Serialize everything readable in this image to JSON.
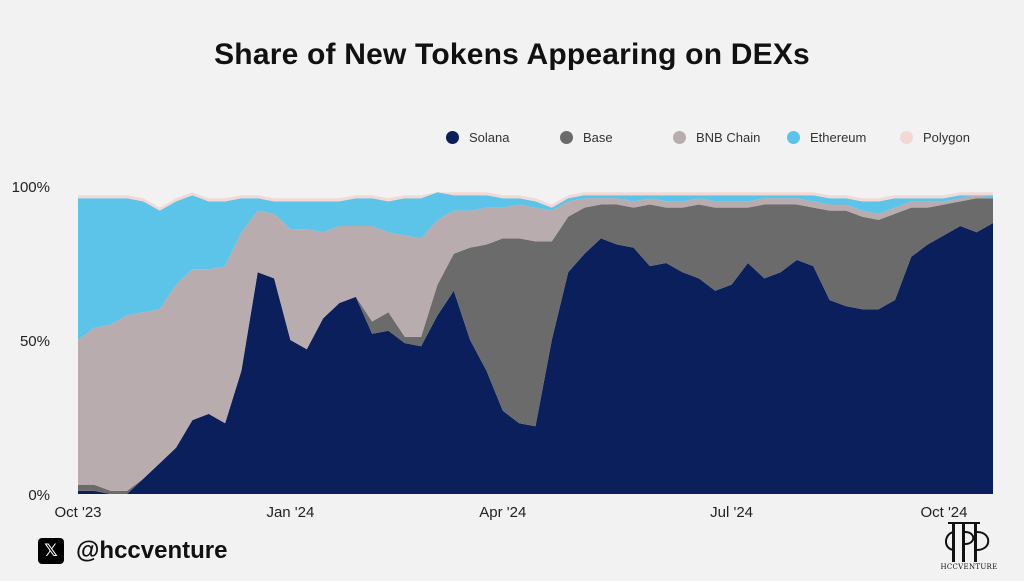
{
  "title": "Share of New Tokens Appearing on DEXs",
  "footer": {
    "handle": "@hccventure",
    "logo_text": "HCCVENTURE",
    "icon": "x-logo-icon"
  },
  "chart_data": {
    "type": "area",
    "stacked": true,
    "title": "Share of New Tokens Appearing on DEXs",
    "ylim": [
      0,
      100
    ],
    "y_ticks": [
      "0%",
      "50%",
      "100%"
    ],
    "x_ticks": [
      "Oct '23",
      "Jan '24",
      "Apr '24",
      "Jul '24",
      "Oct '24"
    ],
    "grid": false,
    "legend_position": "top-right",
    "x": [
      "2023-10-01",
      "2023-10-08",
      "2023-10-15",
      "2023-10-22",
      "2023-10-29",
      "2023-11-05",
      "2023-11-12",
      "2023-11-19",
      "2023-11-26",
      "2023-12-03",
      "2023-12-10",
      "2023-12-17",
      "2023-12-24",
      "2023-12-31",
      "2024-01-07",
      "2024-01-14",
      "2024-01-21",
      "2024-01-28",
      "2024-02-04",
      "2024-02-11",
      "2024-02-18",
      "2024-02-25",
      "2024-03-03",
      "2024-03-10",
      "2024-03-17",
      "2024-03-24",
      "2024-03-31",
      "2024-04-07",
      "2024-04-14",
      "2024-04-21",
      "2024-04-28",
      "2024-05-05",
      "2024-05-12",
      "2024-05-19",
      "2024-05-26",
      "2024-06-02",
      "2024-06-09",
      "2024-06-16",
      "2024-06-23",
      "2024-06-30",
      "2024-07-07",
      "2024-07-14",
      "2024-07-21",
      "2024-07-28",
      "2024-08-04",
      "2024-08-11",
      "2024-08-18",
      "2024-08-25",
      "2024-09-01",
      "2024-09-08",
      "2024-09-15",
      "2024-09-22",
      "2024-09-29",
      "2024-10-06",
      "2024-10-13",
      "2024-10-20",
      "2024-10-27"
    ],
    "series": [
      {
        "name": "Solana",
        "color": "#0b1f5c",
        "values": [
          1,
          1,
          0,
          0,
          5,
          10,
          15,
          24,
          26,
          23,
          40,
          72,
          70,
          50,
          47,
          57,
          62,
          64,
          52,
          53,
          49,
          48,
          58,
          66,
          50,
          40,
          27,
          23,
          22,
          50,
          72,
          78,
          83,
          81,
          80,
          74,
          75,
          72,
          70,
          66,
          68,
          75,
          70,
          72,
          76,
          74,
          63,
          61,
          60,
          60,
          63,
          77,
          81,
          84,
          87,
          85,
          88
        ]
      },
      {
        "name": "Base",
        "color": "#6b6b6b",
        "values": [
          2,
          2,
          1,
          1,
          0,
          0,
          0,
          0,
          0,
          0,
          0,
          0,
          0,
          0,
          0,
          0,
          0,
          0,
          4,
          6,
          2,
          3,
          10,
          12,
          30,
          41,
          56,
          60,
          60,
          32,
          18,
          15,
          11,
          13,
          13,
          20,
          18,
          21,
          24,
          27,
          25,
          18,
          24,
          22,
          18,
          19,
          29,
          31,
          30,
          29,
          28,
          16,
          12,
          10,
          8,
          11,
          8
        ]
      },
      {
        "name": "BNB Chain",
        "color": "#b8acae",
        "values": [
          47,
          51,
          54,
          57,
          54,
          50,
          53,
          49,
          47,
          51,
          45,
          20,
          21,
          36,
          39,
          28,
          25,
          23,
          31,
          26,
          33,
          32,
          21,
          14,
          12,
          12,
          10,
          11,
          11,
          10,
          5,
          3,
          2,
          2,
          2,
          2,
          2,
          2,
          2,
          2,
          2,
          2,
          2,
          2,
          2,
          2,
          2,
          2,
          2,
          2,
          2,
          2,
          2,
          1,
          1,
          1,
          0
        ]
      },
      {
        "name": "Ethereum",
        "color": "#5bc4e8",
        "values": [
          46,
          42,
          41,
          38,
          36,
          32,
          27,
          24,
          22,
          21,
          11,
          4,
          4,
          9,
          9,
          10,
          8,
          9,
          9,
          10,
          12,
          13,
          9,
          5,
          5,
          4,
          3,
          2,
          2,
          1,
          1,
          1,
          1,
          1,
          2,
          1,
          2,
          2,
          1,
          2,
          2,
          2,
          1,
          1,
          1,
          2,
          2,
          2,
          3,
          4,
          3,
          1,
          1,
          1,
          1,
          0,
          1
        ]
      },
      {
        "name": "Polygon",
        "color": "#f2d9d6",
        "values": [
          1,
          1,
          1,
          1,
          1,
          1,
          1,
          1,
          1,
          1,
          1,
          1,
          1,
          1,
          1,
          1,
          1,
          1,
          1,
          1,
          1,
          1,
          0,
          1,
          1,
          1,
          1,
          1,
          1,
          1,
          1,
          1,
          1,
          1,
          1,
          1,
          1,
          1,
          1,
          1,
          1,
          1,
          1,
          1,
          1,
          1,
          1,
          1,
          1,
          1,
          1,
          1,
          1,
          1,
          1,
          1,
          1
        ]
      }
    ]
  }
}
